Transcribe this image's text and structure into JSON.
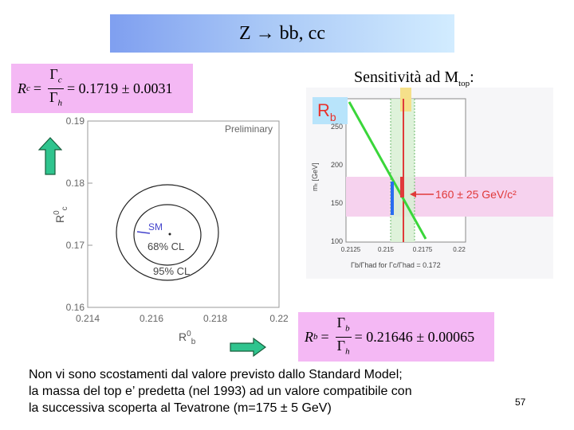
{
  "title": "Z → bb, cc",
  "formula_rc": {
    "lhs": "R",
    "lhs_sub": "c",
    "num": "Γ",
    "num_sub": "c",
    "den": "Γ",
    "den_sub": "h",
    "rhs": "= 0.1719 ± 0.0031"
  },
  "formula_rb": {
    "lhs": "R",
    "lhs_sub": "b",
    "num": "Γ",
    "num_sub": "b",
    "den": "Γ",
    "den_sub": "h",
    "rhs": "= 0.21646 ± 0.00065"
  },
  "sensitivity": {
    "text": "Sensitività ad M",
    "sub": "top",
    "suffix": ":"
  },
  "left_plot": {
    "label_preliminary": "Preliminary",
    "label_sm": "SM",
    "label_68": "68% CL",
    "label_95": "95% CL",
    "ylabel": "R",
    "ylabel_sup": "0",
    "ylabel_sub": "c",
    "xlabel": "R",
    "xlabel_sup": "0",
    "xlabel_sub": "b",
    "xticks": [
      "0.214",
      "0.216",
      "0.218",
      "0.22"
    ],
    "yticks": [
      "0.19",
      "0.18",
      "0.17",
      "0.16"
    ]
  },
  "right_plot": {
    "badge": "R",
    "badge_sub": "b",
    "ylabel": "mₜ [GeV]",
    "yticks": [
      "250",
      "200",
      "150",
      "100"
    ],
    "xticks": [
      "0.2125",
      "0.215",
      "0.2175",
      "0.22"
    ],
    "xlabel": "Γb/Γhad for Γc/Γhad = 0.172",
    "result": "160 ± 25 GeV/c²"
  },
  "body_text": [
    "Non vi sono scostamenti dal valore previsto dallo Standard Model;",
    "la massa del top e’ predetta (nel 1993) ad un valore compatibile con",
    "la successiva scoperta al Tevatrone (m=175 ± 5 GeV)"
  ],
  "page_number": "57"
}
